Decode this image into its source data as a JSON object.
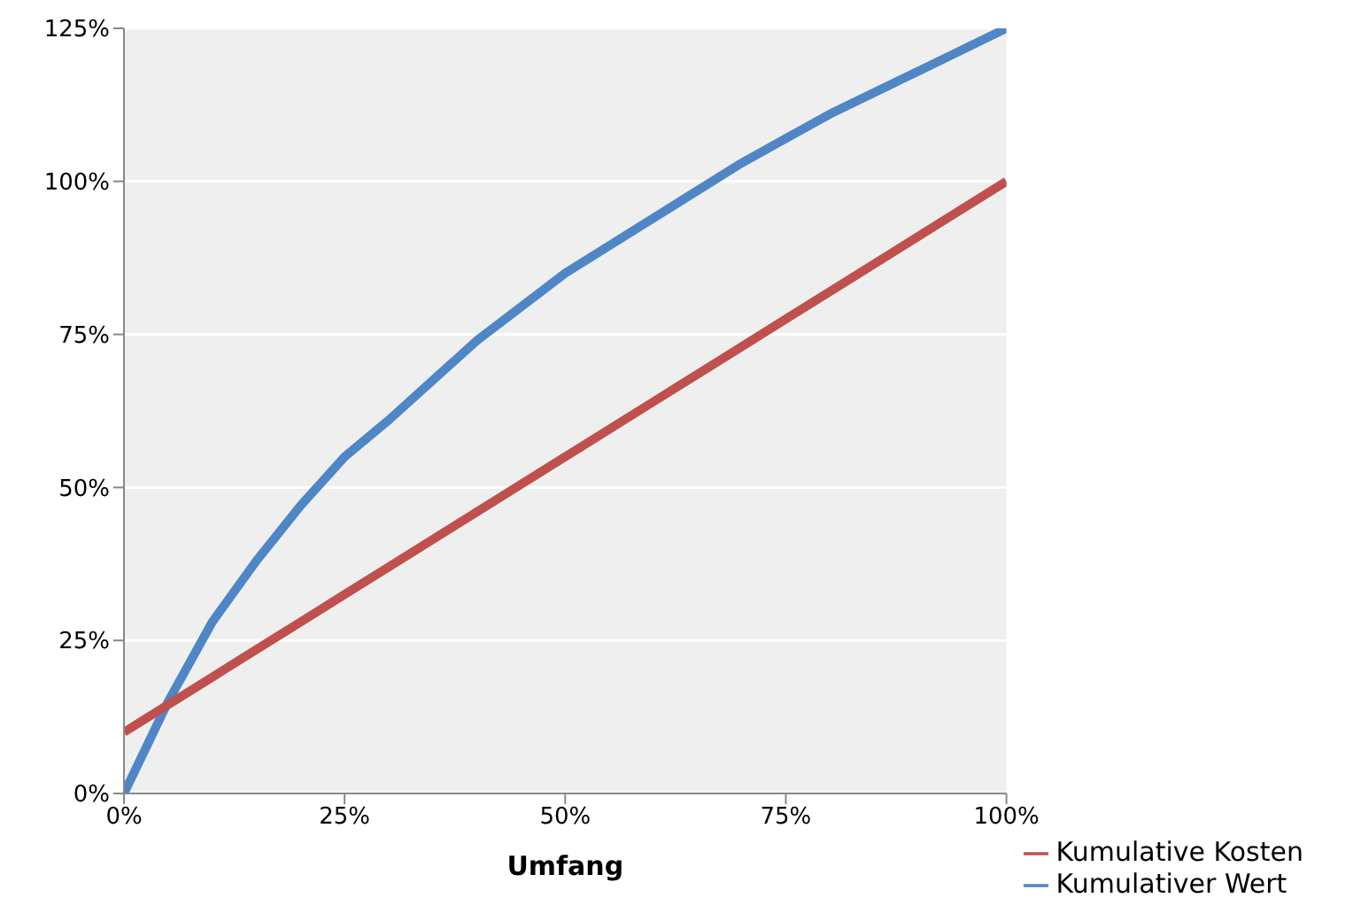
{
  "chart_data": {
    "type": "line",
    "xlabel": "Umfang",
    "x": [
      0,
      5,
      10,
      15,
      20,
      25,
      30,
      40,
      50,
      60,
      70,
      75,
      80,
      90,
      100
    ],
    "series": [
      {
        "name": "Kumulativer Wert",
        "color": "#4f86c6",
        "values": [
          0,
          15,
          28,
          38,
          47,
          55,
          61,
          74,
          85,
          94,
          103,
          107,
          111,
          118,
          125
        ]
      },
      {
        "name": "Kumulative Kosten",
        "color": "#c0504d",
        "values": [
          10,
          14.5,
          19,
          23.5,
          28,
          32.5,
          37,
          46,
          55,
          64,
          73,
          77.5,
          82,
          91,
          100
        ]
      }
    ],
    "xlim": [
      0,
      100
    ],
    "xticks": [
      {
        "value": 0,
        "label": "0%"
      },
      {
        "value": 25,
        "label": "25%"
      },
      {
        "value": 50,
        "label": "50%"
      },
      {
        "value": 75,
        "label": "75%"
      },
      {
        "value": 100,
        "label": "100%"
      }
    ],
    "ylim": [
      0,
      125
    ],
    "yticks": [
      {
        "value": 0,
        "label": "0%"
      },
      {
        "value": 25,
        "label": "25%"
      },
      {
        "value": 50,
        "label": "50%"
      },
      {
        "value": 75,
        "label": "75%"
      },
      {
        "value": 100,
        "label": "100%"
      },
      {
        "value": 125,
        "label": "125%"
      }
    ],
    "grid": "y",
    "legend": "bottom right",
    "marker": "none",
    "line_style": "solid"
  }
}
